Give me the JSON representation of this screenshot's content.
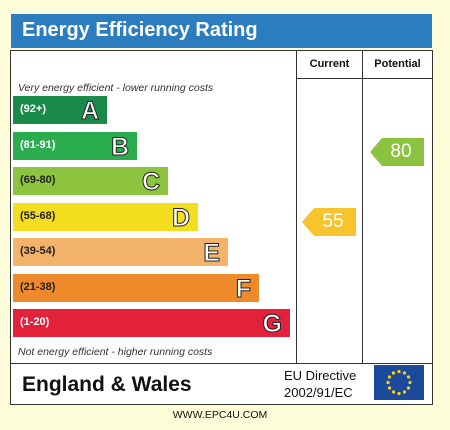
{
  "title": "Energy Efficiency Rating",
  "columns": {
    "current": "Current",
    "potential": "Potential"
  },
  "top_caption": "Very energy efficient - lower running costs",
  "bottom_caption": "Not energy efficient - higher running costs",
  "region": "England & Wales",
  "directive": {
    "line1": "EU Directive",
    "line2": "2002/91/EC"
  },
  "website": "WWW.EPC4U.COM",
  "chart_data": {
    "type": "bar",
    "title": "Energy Efficiency Rating",
    "bands": [
      {
        "range": "(92+)",
        "letter": "A",
        "color": "#1a8a4a"
      },
      {
        "range": "(81-91)",
        "letter": "B",
        "color": "#2aac4f"
      },
      {
        "range": "(69-80)",
        "letter": "C",
        "color": "#8cc43f"
      },
      {
        "range": "(55-68)",
        "letter": "D",
        "color": "#f5dd1f"
      },
      {
        "range": "(39-54)",
        "letter": "E",
        "color": "#f4b36a"
      },
      {
        "range": "(21-38)",
        "letter": "F",
        "color": "#ee8a2b"
      },
      {
        "range": "(1-20)",
        "letter": "G",
        "color": "#e2213b"
      }
    ],
    "ratings": [
      {
        "name": "Current",
        "value": 55,
        "band": "D",
        "color": "#f7c52b"
      },
      {
        "name": "Potential",
        "value": 80,
        "band": "C",
        "color": "#8cc43f"
      }
    ]
  }
}
